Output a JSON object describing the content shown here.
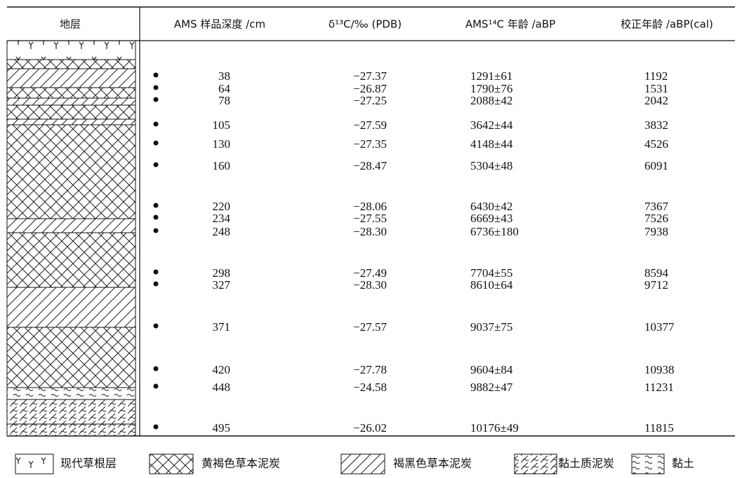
{
  "table": {
    "header": [
      "地层",
      "AMS 样品深度 /cm",
      "δ¹³C/‰ (PDB)",
      "AMS¹⁴C 年龄 /aBP",
      "校正年龄 /aBP(cal)"
    ],
    "rows": [
      [
        "38",
        "−27.37",
        "1291±61",
        "1192"
      ],
      [
        "64",
        "−26.87",
        "1790±76",
        "1531"
      ],
      [
        "78",
        "−27.25",
        "2088±42",
        "2042"
      ],
      [
        "105",
        "−27.59",
        "3642±44",
        "3832"
      ],
      [
        "130",
        "−27.35",
        "4148±44",
        "4526"
      ],
      [
        "160",
        "−28.47",
        "5304±48",
        "6091"
      ],
      [
        "220",
        "−28.06",
        "6430±42",
        "7367"
      ],
      [
        "234",
        "−27.55",
        "6669±43",
        "7526"
      ],
      [
        "248",
        "−28.30",
        "6736±180",
        "7938"
      ],
      [
        "298",
        "−27.49",
        "7704±55",
        "8594"
      ],
      [
        "327",
        "−28.30",
        "8610±64",
        "9712"
      ],
      [
        "371",
        "−27.57",
        "9037±75",
        "10377"
      ],
      [
        "420",
        "−27.78",
        "9604±84",
        "10938"
      ],
      [
        "448",
        "−24.58",
        "9882±47",
        "11231"
      ],
      [
        "495",
        "−26.02",
        "10176±49",
        "11815"
      ]
    ]
  },
  "legend": [
    "现代草根层",
    "黄褐色草本泥炭",
    "褐黑色草本泥炭",
    "黏土质泥炭",
    "黏土"
  ]
}
